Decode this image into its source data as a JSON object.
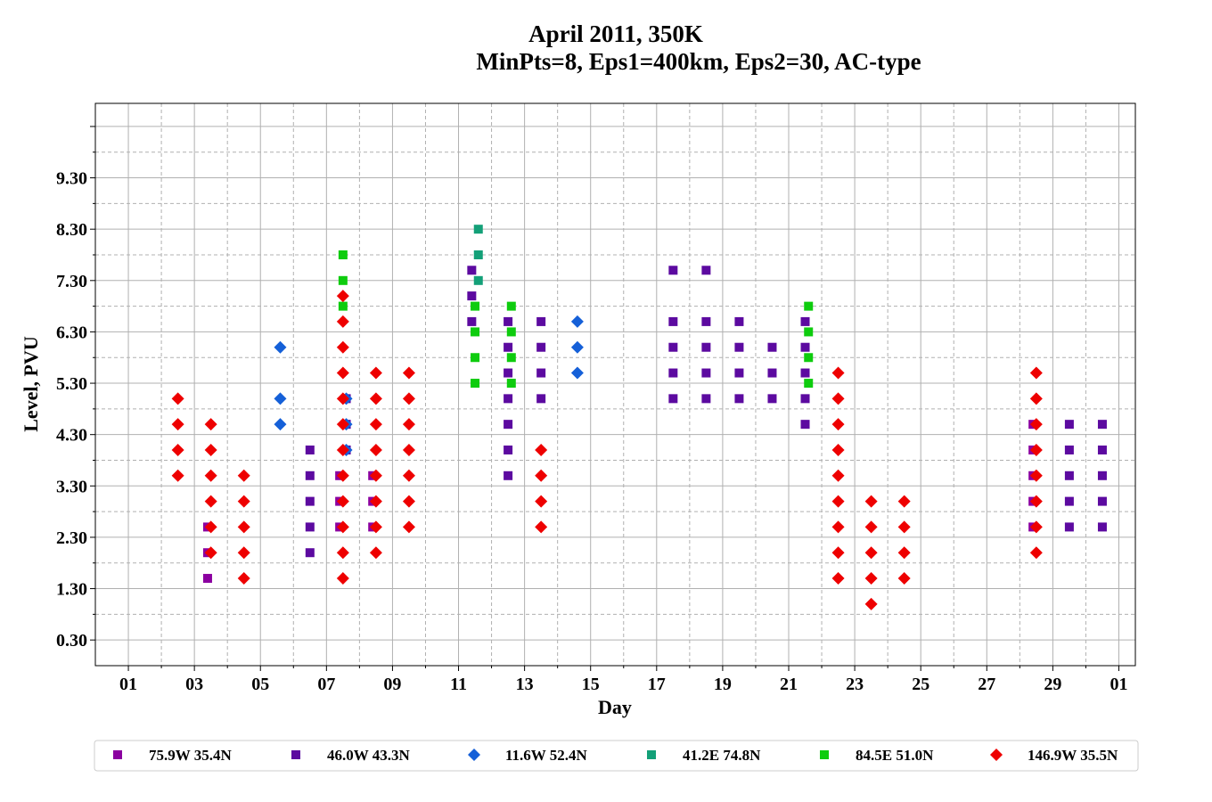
{
  "chart_data": {
    "type": "scatter",
    "title": "April 2011, 350K",
    "subtitle": "MinPts=8, Eps1=400km, Eps2=30, AC-type",
    "xlabel": "Day",
    "ylabel": "Level, PVU",
    "x_tick_labels": [
      "01",
      "03",
      "05",
      "07",
      "09",
      "11",
      "13",
      "15",
      "17",
      "19",
      "21",
      "23",
      "25",
      "27",
      "29",
      "01"
    ],
    "y_tick_labels": [
      "0.30",
      "1.30",
      "2.30",
      "3.30",
      "4.30",
      "5.30",
      "6.30",
      "7.30",
      "8.30",
      "9.30"
    ],
    "xlim": [
      0,
      31.5
    ],
    "ylim": [
      -0.2,
      10.75
    ],
    "grid": true,
    "legend_position": "bottom",
    "series": [
      {
        "name": "75.9W 35.4N",
        "color": "#8b00a0",
        "marker": "square",
        "points": [
          [
            3.4,
            1.5
          ],
          [
            3.4,
            2.0
          ],
          [
            3.4,
            2.5
          ],
          [
            7.4,
            2.5
          ],
          [
            7.4,
            3.0
          ],
          [
            7.4,
            3.5
          ],
          [
            8.4,
            2.5
          ],
          [
            8.4,
            3.0
          ],
          [
            8.4,
            3.5
          ],
          [
            28.4,
            2.5
          ],
          [
            28.4,
            3.0
          ],
          [
            28.4,
            3.5
          ],
          [
            28.4,
            4.0
          ],
          [
            28.4,
            4.5
          ]
        ]
      },
      {
        "name": "46.0W 43.3N",
        "color": "#5c0aa0",
        "marker": "square",
        "points": [
          [
            6.5,
            2.0
          ],
          [
            6.5,
            2.5
          ],
          [
            6.5,
            3.0
          ],
          [
            6.5,
            3.5
          ],
          [
            6.5,
            4.0
          ],
          [
            7.6,
            4.0
          ],
          [
            7.6,
            4.5
          ],
          [
            7.6,
            5.0
          ],
          [
            11.4,
            6.5
          ],
          [
            11.4,
            7.0
          ],
          [
            11.4,
            7.5
          ],
          [
            12.5,
            3.5
          ],
          [
            12.5,
            4.0
          ],
          [
            12.5,
            4.5
          ],
          [
            12.5,
            5.0
          ],
          [
            12.5,
            5.5
          ],
          [
            12.5,
            6.0
          ],
          [
            12.5,
            6.5
          ],
          [
            13.5,
            5.0
          ],
          [
            13.5,
            5.5
          ],
          [
            13.5,
            6.0
          ],
          [
            13.5,
            6.5
          ],
          [
            17.5,
            5.0
          ],
          [
            17.5,
            5.5
          ],
          [
            17.5,
            6.0
          ],
          [
            17.5,
            6.5
          ],
          [
            17.5,
            7.5
          ],
          [
            18.5,
            5.0
          ],
          [
            18.5,
            5.5
          ],
          [
            18.5,
            6.0
          ],
          [
            18.5,
            6.5
          ],
          [
            18.5,
            7.5
          ],
          [
            19.5,
            5.0
          ],
          [
            19.5,
            5.5
          ],
          [
            19.5,
            6.0
          ],
          [
            19.5,
            6.5
          ],
          [
            20.5,
            5.0
          ],
          [
            20.5,
            5.5
          ],
          [
            20.5,
            6.0
          ],
          [
            21.5,
            4.5
          ],
          [
            21.5,
            5.0
          ],
          [
            21.5,
            5.5
          ],
          [
            21.5,
            6.0
          ],
          [
            21.5,
            6.5
          ],
          [
            29.5,
            2.5
          ],
          [
            29.5,
            3.0
          ],
          [
            29.5,
            3.5
          ],
          [
            29.5,
            4.0
          ],
          [
            29.5,
            4.5
          ],
          [
            30.5,
            2.5
          ],
          [
            30.5,
            3.0
          ],
          [
            30.5,
            3.5
          ],
          [
            30.5,
            4.0
          ],
          [
            30.5,
            4.5
          ]
        ]
      },
      {
        "name": "11.6W 52.4N",
        "color": "#1560d8",
        "marker": "diamond",
        "points": [
          [
            5.6,
            4.5
          ],
          [
            5.6,
            5.0
          ],
          [
            5.6,
            6.0
          ],
          [
            7.6,
            4.0
          ],
          [
            7.6,
            4.5
          ],
          [
            7.6,
            5.0
          ],
          [
            14.6,
            5.5
          ],
          [
            14.6,
            6.0
          ],
          [
            14.6,
            6.5
          ]
        ]
      },
      {
        "name": "41.2E 74.8N",
        "color": "#13a078",
        "marker": "square",
        "points": [
          [
            11.6,
            7.3
          ],
          [
            11.6,
            7.8
          ],
          [
            11.6,
            8.3
          ]
        ]
      },
      {
        "name": "84.5E 51.0N",
        "color": "#0ecc0e",
        "marker": "square",
        "points": [
          [
            7.5,
            6.8
          ],
          [
            7.5,
            7.3
          ],
          [
            7.5,
            7.8
          ],
          [
            11.5,
            5.3
          ],
          [
            11.5,
            5.8
          ],
          [
            11.5,
            6.3
          ],
          [
            11.5,
            6.8
          ],
          [
            12.6,
            5.3
          ],
          [
            12.6,
            5.8
          ],
          [
            12.6,
            6.3
          ],
          [
            12.6,
            6.8
          ],
          [
            21.6,
            5.3
          ],
          [
            21.6,
            5.8
          ],
          [
            21.6,
            6.3
          ],
          [
            21.6,
            6.8
          ]
        ]
      },
      {
        "name": "146.9W 35.5N",
        "color": "#ee0000",
        "marker": "diamond",
        "points": [
          [
            2.5,
            3.5
          ],
          [
            2.5,
            4.0
          ],
          [
            2.5,
            4.5
          ],
          [
            2.5,
            5.0
          ],
          [
            3.5,
            2.0
          ],
          [
            3.5,
            2.5
          ],
          [
            3.5,
            3.0
          ],
          [
            3.5,
            3.5
          ],
          [
            3.5,
            4.0
          ],
          [
            3.5,
            4.5
          ],
          [
            4.5,
            1.5
          ],
          [
            4.5,
            2.0
          ],
          [
            4.5,
            2.5
          ],
          [
            4.5,
            3.0
          ],
          [
            4.5,
            3.5
          ],
          [
            7.5,
            1.5
          ],
          [
            7.5,
            2.0
          ],
          [
            7.5,
            2.5
          ],
          [
            7.5,
            3.0
          ],
          [
            7.5,
            3.5
          ],
          [
            7.5,
            4.0
          ],
          [
            7.5,
            4.5
          ],
          [
            7.5,
            5.0
          ],
          [
            7.5,
            5.5
          ],
          [
            7.5,
            6.0
          ],
          [
            7.5,
            6.5
          ],
          [
            7.5,
            7.0
          ],
          [
            8.5,
            2.0
          ],
          [
            8.5,
            2.5
          ],
          [
            8.5,
            3.0
          ],
          [
            8.5,
            3.5
          ],
          [
            8.5,
            4.0
          ],
          [
            8.5,
            4.5
          ],
          [
            8.5,
            5.0
          ],
          [
            8.5,
            5.5
          ],
          [
            9.5,
            2.5
          ],
          [
            9.5,
            3.0
          ],
          [
            9.5,
            3.5
          ],
          [
            9.5,
            4.0
          ],
          [
            9.5,
            4.5
          ],
          [
            9.5,
            5.0
          ],
          [
            9.5,
            5.5
          ],
          [
            13.5,
            2.5
          ],
          [
            13.5,
            3.0
          ],
          [
            13.5,
            3.5
          ],
          [
            13.5,
            4.0
          ],
          [
            22.5,
            1.5
          ],
          [
            22.5,
            2.0
          ],
          [
            22.5,
            2.5
          ],
          [
            22.5,
            3.0
          ],
          [
            22.5,
            3.5
          ],
          [
            22.5,
            4.0
          ],
          [
            22.5,
            4.5
          ],
          [
            22.5,
            5.0
          ],
          [
            22.5,
            5.5
          ],
          [
            23.5,
            1.0
          ],
          [
            23.5,
            1.5
          ],
          [
            23.5,
            2.0
          ],
          [
            23.5,
            2.5
          ],
          [
            23.5,
            3.0
          ],
          [
            24.5,
            1.5
          ],
          [
            24.5,
            2.0
          ],
          [
            24.5,
            2.5
          ],
          [
            24.5,
            3.0
          ],
          [
            28.5,
            2.0
          ],
          [
            28.5,
            2.5
          ],
          [
            28.5,
            3.0
          ],
          [
            28.5,
            3.5
          ],
          [
            28.5,
            4.0
          ],
          [
            28.5,
            4.5
          ],
          [
            28.5,
            5.0
          ],
          [
            28.5,
            5.5
          ]
        ]
      }
    ]
  }
}
